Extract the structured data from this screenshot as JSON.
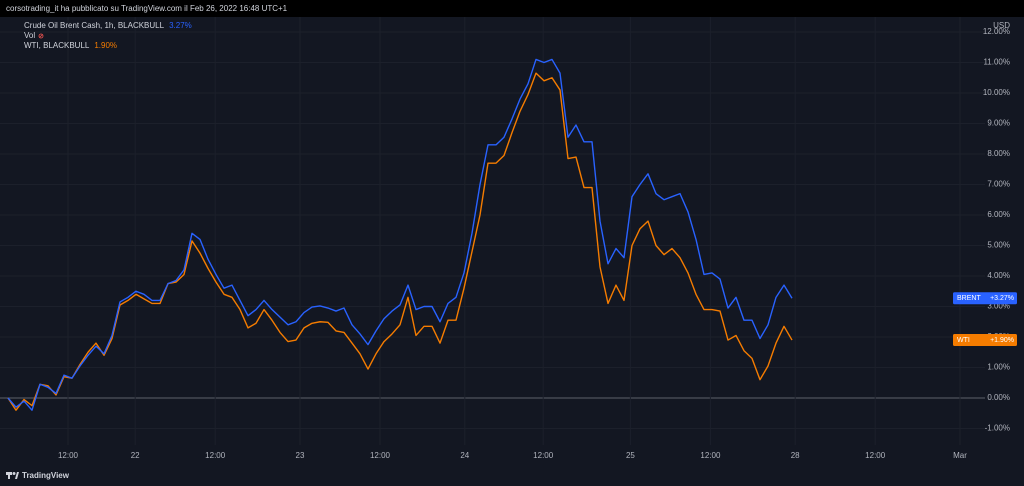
{
  "header": "corsotrading_it ha pubblicato su TradingView.com il Feb 26, 2022 16:48 UTC+1",
  "footer": "TradingView",
  "chart_data": {
    "type": "line",
    "currency": "USD",
    "vol_label": "Vol",
    "x": [
      0,
      1,
      2,
      3,
      4,
      5,
      6,
      7,
      8,
      9,
      10,
      11,
      12,
      13,
      14,
      15,
      16,
      17,
      18,
      19,
      20,
      21,
      22,
      23,
      24,
      25,
      26,
      27,
      28,
      29,
      30,
      31,
      32,
      33,
      34,
      35,
      36,
      37,
      38,
      39,
      40,
      41,
      42,
      43,
      44,
      45,
      46,
      47,
      48,
      49,
      50,
      51,
      52,
      53,
      54,
      55,
      56,
      57,
      58,
      59,
      60,
      61,
      62,
      63,
      64,
      65,
      66,
      67,
      68,
      69,
      70,
      71,
      72,
      73,
      74,
      75,
      76,
      77,
      78,
      79,
      80,
      81,
      82,
      83,
      84,
      85,
      86,
      87,
      88,
      89,
      90,
      91,
      92,
      93,
      94,
      95,
      96,
      97,
      98
    ],
    "series": [
      {
        "name": "Crude Oil Brent Cash, 1h, BLACKBULL",
        "short_name": "BRENT",
        "color": "#2962ff",
        "legend_value_label": "3.27%",
        "last_value_label": "+3.27%",
        "values": [
          0.0,
          -0.3,
          -0.1,
          -0.4,
          0.45,
          0.35,
          0.15,
          0.75,
          0.65,
          1.05,
          1.4,
          1.7,
          1.45,
          2.05,
          3.15,
          3.3,
          3.5,
          3.4,
          3.2,
          3.2,
          3.75,
          3.85,
          4.2,
          5.4,
          5.2,
          4.55,
          4.05,
          3.6,
          3.7,
          3.2,
          2.7,
          2.9,
          3.2,
          2.9,
          2.65,
          2.4,
          2.5,
          2.8,
          2.98,
          3.02,
          2.95,
          2.85,
          2.95,
          2.4,
          2.1,
          1.75,
          2.2,
          2.6,
          2.85,
          3.05,
          3.7,
          2.9,
          3.0,
          3.0,
          2.5,
          3.1,
          3.3,
          4.1,
          5.4,
          7.0,
          8.3,
          8.3,
          8.55,
          9.15,
          9.8,
          10.3,
          11.1,
          11.0,
          11.1,
          10.65,
          8.55,
          8.95,
          8.4,
          8.4,
          5.8,
          4.4,
          4.9,
          4.6,
          6.6,
          7.0,
          7.35,
          6.7,
          6.5,
          6.6,
          6.7,
          6.1,
          5.2,
          4.05,
          4.1,
          3.9,
          2.95,
          3.3,
          2.55,
          2.55,
          1.95,
          2.4,
          3.3,
          3.7,
          3.27
        ]
      },
      {
        "name": "WTI, BLACKBULL",
        "short_name": "WTI",
        "color": "#f57c00",
        "legend_value_label": "1.90%",
        "last_value_label": "+1.90%",
        "values": [
          0.0,
          -0.4,
          -0.05,
          -0.25,
          0.45,
          0.4,
          0.1,
          0.7,
          0.65,
          1.1,
          1.5,
          1.8,
          1.4,
          1.95,
          3.05,
          3.2,
          3.4,
          3.25,
          3.1,
          3.1,
          3.75,
          3.8,
          4.05,
          5.15,
          4.75,
          4.25,
          3.8,
          3.4,
          3.3,
          2.9,
          2.3,
          2.45,
          2.9,
          2.55,
          2.15,
          1.85,
          1.9,
          2.3,
          2.45,
          2.5,
          2.48,
          2.2,
          2.15,
          1.8,
          1.45,
          0.95,
          1.45,
          1.85,
          2.1,
          2.4,
          3.3,
          2.05,
          2.35,
          2.35,
          1.8,
          2.55,
          2.55,
          3.6,
          4.8,
          6.0,
          7.7,
          7.7,
          7.95,
          8.7,
          9.4,
          9.95,
          10.65,
          10.4,
          10.5,
          10.1,
          7.85,
          7.9,
          6.9,
          6.9,
          4.3,
          3.1,
          3.7,
          3.2,
          5.0,
          5.55,
          5.8,
          5.0,
          4.7,
          4.9,
          4.6,
          4.1,
          3.4,
          2.9,
          2.9,
          2.85,
          1.9,
          2.05,
          1.55,
          1.3,
          0.6,
          1.05,
          1.8,
          2.35,
          1.9
        ]
      }
    ],
    "xlim": [
      -1,
      122.125
    ],
    "xticks": [
      {
        "value": 7.5,
        "label": "12:00"
      },
      {
        "value": 15.9,
        "label": "22"
      },
      {
        "value": 25.9,
        "label": "12:00"
      },
      {
        "value": 36.5,
        "label": "23"
      },
      {
        "value": 46.5,
        "label": "12:00"
      },
      {
        "value": 57.1,
        "label": "24"
      },
      {
        "value": 66.9,
        "label": "12:00"
      },
      {
        "value": 77.8,
        "label": "25"
      },
      {
        "value": 87.8,
        "label": "12:00"
      },
      {
        "value": 98.4,
        "label": "28"
      },
      {
        "value": 108.4,
        "label": "12:00"
      },
      {
        "value": 119,
        "label": "Mar"
      }
    ],
    "ylim": [
      -1.541,
      12.393
    ],
    "yticks": [
      {
        "value": -1,
        "label": "-1.00%"
      },
      {
        "value": 0,
        "label": "0.00%"
      },
      {
        "value": 1,
        "label": "1.00%"
      },
      {
        "value": 2,
        "label": "2.00%"
      },
      {
        "value": 3,
        "label": "3.00%"
      },
      {
        "value": 4,
        "label": "4.00%"
      },
      {
        "value": 5,
        "label": "5.00%"
      },
      {
        "value": 6,
        "label": "6.00%"
      },
      {
        "value": 7,
        "label": "7.00%"
      },
      {
        "value": 8,
        "label": "8.00%"
      },
      {
        "value": 9,
        "label": "9.00%"
      },
      {
        "value": 10,
        "label": "10.00%"
      },
      {
        "value": 11,
        "label": "11.00%"
      },
      {
        "value": 12,
        "label": "12.00%"
      }
    ],
    "grid": true
  }
}
